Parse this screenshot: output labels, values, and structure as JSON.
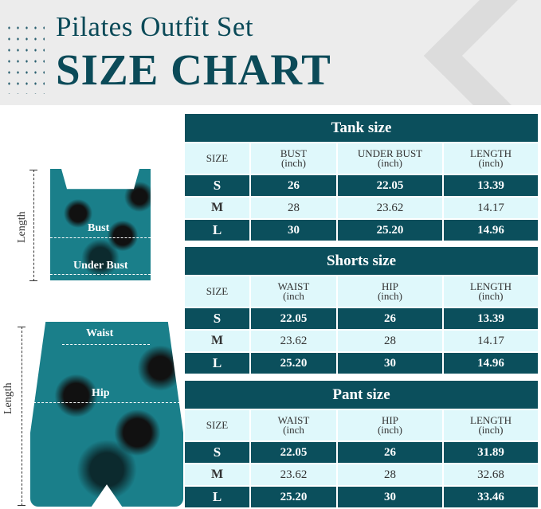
{
  "header": {
    "subtitle": "Pilates Outfit Set",
    "title": "SIZE CHART"
  },
  "colors": {
    "primary": "#0b4f5c",
    "light": "#dff8fb"
  },
  "diagram": {
    "tank_labels": {
      "length": "Length",
      "bust": "Bust",
      "under_bust": "Under Bust"
    },
    "shorts_labels": {
      "length": "Length",
      "waist": "Waist",
      "hip": "Hip"
    }
  },
  "tables": [
    {
      "title": "Tank size",
      "headers": [
        [
          "SIZE",
          ""
        ],
        [
          "BUST",
          "(inch)"
        ],
        [
          "UNDER BUST",
          "(inch)"
        ],
        [
          "LENGTH",
          "(inch)"
        ]
      ],
      "rows": [
        [
          "S",
          "26",
          "22.05",
          "13.39"
        ],
        [
          "M",
          "28",
          "23.62",
          "14.17"
        ],
        [
          "L",
          "30",
          "25.20",
          "14.96"
        ]
      ]
    },
    {
      "title": "Shorts size",
      "headers": [
        [
          "SIZE",
          ""
        ],
        [
          "WAIST",
          "(inch"
        ],
        [
          "HIP",
          "(inch)"
        ],
        [
          "LENGTH",
          "(inch)"
        ]
      ],
      "rows": [
        [
          "S",
          "22.05",
          "26",
          "13.39"
        ],
        [
          "M",
          "23.62",
          "28",
          "14.17"
        ],
        [
          "L",
          "25.20",
          "30",
          "14.96"
        ]
      ]
    },
    {
      "title": "Pant size",
      "headers": [
        [
          "SIZE",
          ""
        ],
        [
          "WAIST",
          "(inch"
        ],
        [
          "HIP",
          "(inch)"
        ],
        [
          "LENGTH",
          "(inch)"
        ]
      ],
      "rows": [
        [
          "S",
          "22.05",
          "26",
          "31.89"
        ],
        [
          "M",
          "23.62",
          "28",
          "32.68"
        ],
        [
          "L",
          "25.20",
          "30",
          "33.46"
        ]
      ]
    }
  ]
}
